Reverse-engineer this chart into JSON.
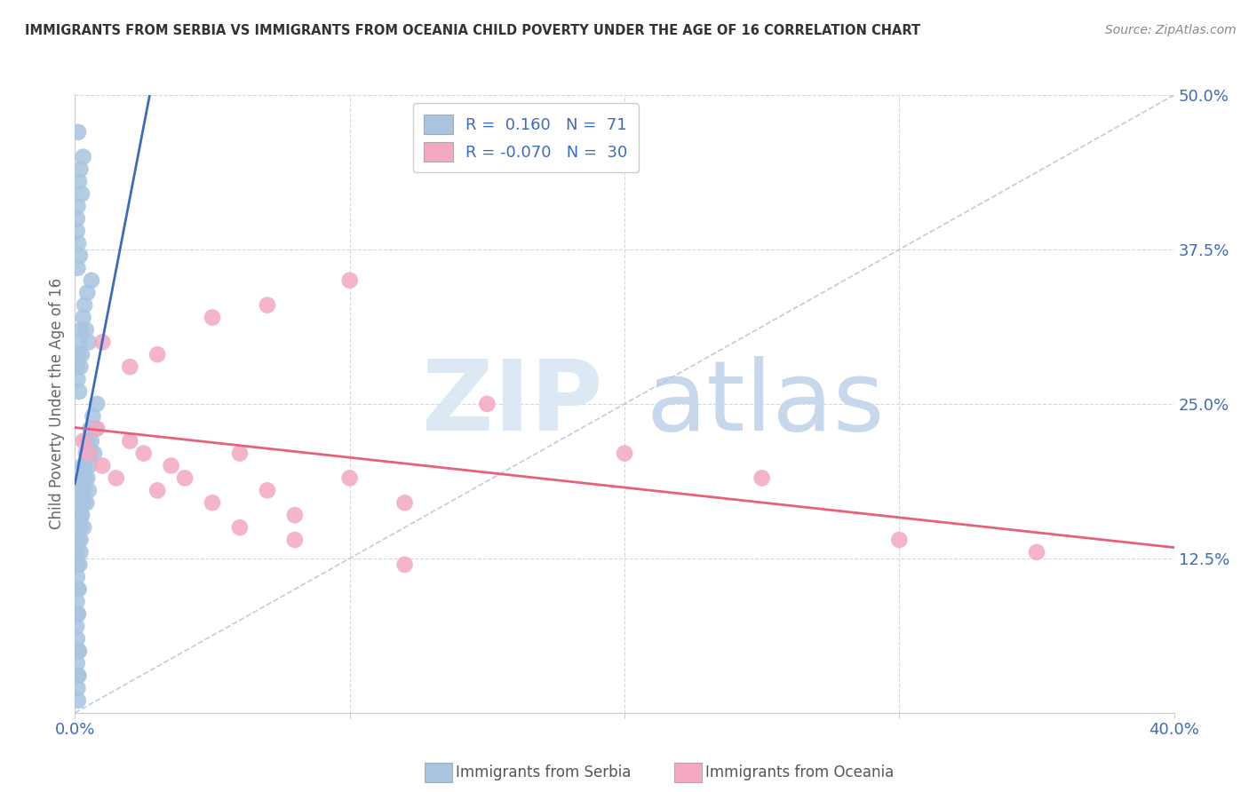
{
  "title": "IMMIGRANTS FROM SERBIA VS IMMIGRANTS FROM OCEANIA CHILD POVERTY UNDER THE AGE OF 16 CORRELATION CHART",
  "source": "Source: ZipAtlas.com",
  "ylabel": "Child Poverty Under the Age of 16",
  "xlim": [
    0.0,
    0.4
  ],
  "ylim": [
    0.0,
    0.5
  ],
  "xtick_positions": [
    0.0,
    0.1,
    0.2,
    0.3,
    0.4
  ],
  "ytick_positions": [
    0.0,
    0.125,
    0.25,
    0.375,
    0.5
  ],
  "xticklabels": [
    "0.0%",
    "",
    "",
    "",
    "40.0%"
  ],
  "yticklabels": [
    "",
    "12.5%",
    "25.0%",
    "37.5%",
    "50.0%"
  ],
  "serbia_color": "#a8c4e0",
  "oceania_color": "#f4a8c0",
  "serbia_line_color": "#3d6bbf",
  "oceania_line_color": "#e8607a",
  "ref_line_color": "#b8c8d8",
  "legend_text_color": "#3d6bbf",
  "grid_color": "#d8d8d8",
  "background_color": "#ffffff",
  "title_color": "#333333",
  "source_color": "#888888",
  "ylabel_color": "#666666",
  "tick_color": "#3d6bbf",
  "bottom_label_color": "#555555",
  "watermark_zip_color": "#dce8f4",
  "watermark_atlas_color": "#c8d8ec",
  "serbia_x": [
    0.0008,
    0.001,
    0.0012,
    0.0008,
    0.001,
    0.0006,
    0.0009,
    0.0011,
    0.0007,
    0.0013,
    0.0015,
    0.001,
    0.0008,
    0.0012,
    0.0009,
    0.0006,
    0.0011,
    0.0014,
    0.0016,
    0.0018,
    0.002,
    0.0022,
    0.0018,
    0.002,
    0.0025,
    0.0025,
    0.0028,
    0.003,
    0.0032,
    0.0028,
    0.003,
    0.0035,
    0.0038,
    0.004,
    0.0042,
    0.0045,
    0.0048,
    0.005,
    0.0052,
    0.0055,
    0.0055,
    0.006,
    0.0065,
    0.007,
    0.0075,
    0.008,
    0.001,
    0.0008,
    0.0012,
    0.0015,
    0.0018,
    0.002,
    0.0022,
    0.0025,
    0.003,
    0.0035,
    0.004,
    0.0045,
    0.005,
    0.006,
    0.0012,
    0.0008,
    0.001,
    0.0015,
    0.002,
    0.0025,
    0.003,
    0.0018,
    0.001,
    0.0008,
    0.0012
  ],
  "serbia_y": [
    0.04,
    0.03,
    0.05,
    0.06,
    0.02,
    0.07,
    0.08,
    0.01,
    0.09,
    0.03,
    0.05,
    0.1,
    0.11,
    0.08,
    0.12,
    0.13,
    0.14,
    0.1,
    0.12,
    0.15,
    0.13,
    0.16,
    0.17,
    0.14,
    0.18,
    0.16,
    0.19,
    0.17,
    0.15,
    0.2,
    0.18,
    0.2,
    0.19,
    0.21,
    0.17,
    0.19,
    0.22,
    0.18,
    0.2,
    0.21,
    0.23,
    0.22,
    0.24,
    0.21,
    0.23,
    0.25,
    0.27,
    0.28,
    0.29,
    0.26,
    0.3,
    0.28,
    0.31,
    0.29,
    0.32,
    0.33,
    0.31,
    0.34,
    0.3,
    0.35,
    0.38,
    0.4,
    0.41,
    0.43,
    0.44,
    0.42,
    0.45,
    0.37,
    0.36,
    0.39,
    0.47
  ],
  "oceania_x": [
    0.003,
    0.005,
    0.008,
    0.01,
    0.015,
    0.02,
    0.025,
    0.03,
    0.035,
    0.04,
    0.05,
    0.06,
    0.07,
    0.08,
    0.1,
    0.12,
    0.01,
    0.02,
    0.03,
    0.05,
    0.07,
    0.1,
    0.15,
    0.2,
    0.25,
    0.3,
    0.35,
    0.06,
    0.08,
    0.12
  ],
  "oceania_y": [
    0.22,
    0.21,
    0.23,
    0.2,
    0.19,
    0.22,
    0.21,
    0.18,
    0.2,
    0.19,
    0.17,
    0.21,
    0.18,
    0.16,
    0.19,
    0.17,
    0.3,
    0.28,
    0.29,
    0.32,
    0.33,
    0.35,
    0.25,
    0.21,
    0.19,
    0.14,
    0.13,
    0.15,
    0.14,
    0.12
  ]
}
